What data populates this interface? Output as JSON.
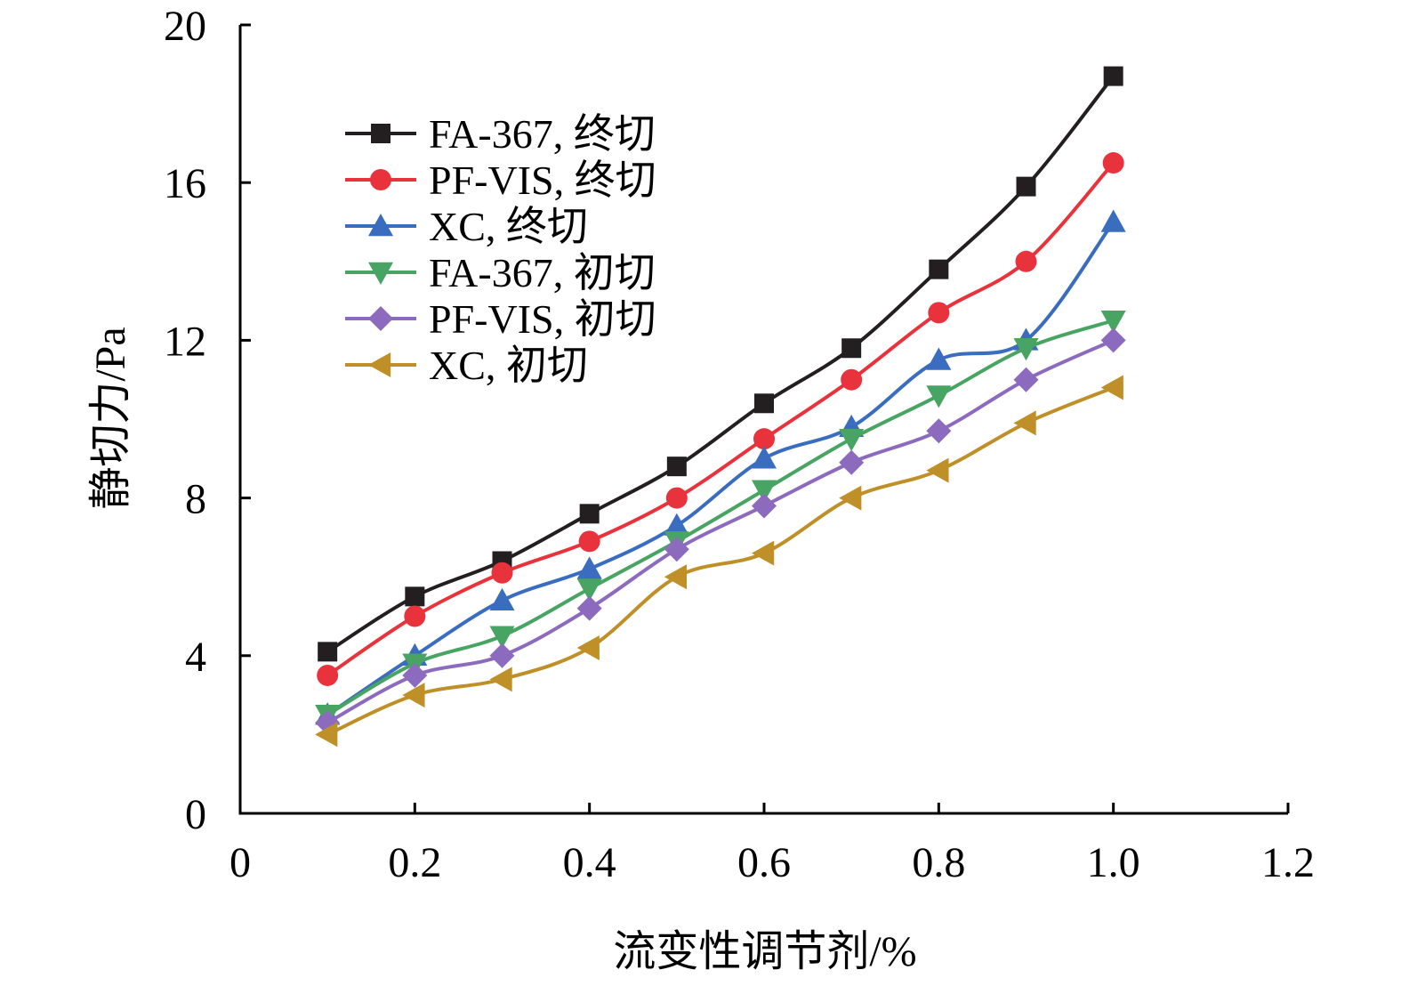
{
  "chart_data": {
    "type": "line",
    "xlabel": "流变性调节剂/%",
    "ylabel": "静切力/Pa",
    "xlim": [
      0,
      1.2
    ],
    "ylim": [
      0,
      20
    ],
    "x_ticks": [
      "0",
      "0.2",
      "0.4",
      "0.6",
      "0.8",
      "1.0",
      "1.2"
    ],
    "y_ticks": [
      "0",
      "4",
      "8",
      "12",
      "16",
      "20"
    ],
    "grid": false,
    "legend_position": "top-left",
    "x": [
      0.1,
      0.2,
      0.3,
      0.4,
      0.5,
      0.6,
      0.7,
      0.8,
      0.9,
      1.0
    ],
    "series": [
      {
        "name": "FA-367, 终切",
        "marker": "square",
        "color": "#231f20",
        "values": [
          4.1,
          5.5,
          6.4,
          7.6,
          8.8,
          10.4,
          11.8,
          13.8,
          15.9,
          18.7
        ]
      },
      {
        "name": "PF-VIS, 终切",
        "marker": "circle",
        "color": "#e8333c",
        "values": [
          3.5,
          5.0,
          6.1,
          6.9,
          8.0,
          9.5,
          11.0,
          12.7,
          14.0,
          16.5
        ]
      },
      {
        "name": "XC, 终切",
        "marker": "triangle-up",
        "color": "#3a6dbf",
        "values": [
          2.5,
          4.0,
          5.4,
          6.2,
          7.3,
          9.0,
          9.8,
          11.5,
          12.0,
          15.0
        ]
      },
      {
        "name": "FA-367, 初切",
        "marker": "triangle-down",
        "color": "#48a462",
        "values": [
          2.5,
          3.8,
          4.5,
          5.7,
          6.9,
          8.2,
          9.5,
          10.6,
          11.8,
          12.5
        ]
      },
      {
        "name": "PF-VIS, 初切",
        "marker": "diamond",
        "color": "#8c6bbf",
        "values": [
          2.3,
          3.5,
          4.0,
          5.2,
          6.7,
          7.8,
          8.9,
          9.7,
          11.0,
          12.0
        ]
      },
      {
        "name": "XC, 初切",
        "marker": "triangle-left",
        "color": "#bf9028",
        "values": [
          2.0,
          3.0,
          3.4,
          4.2,
          6.0,
          6.6,
          8.0,
          8.7,
          9.9,
          10.8
        ]
      }
    ]
  }
}
